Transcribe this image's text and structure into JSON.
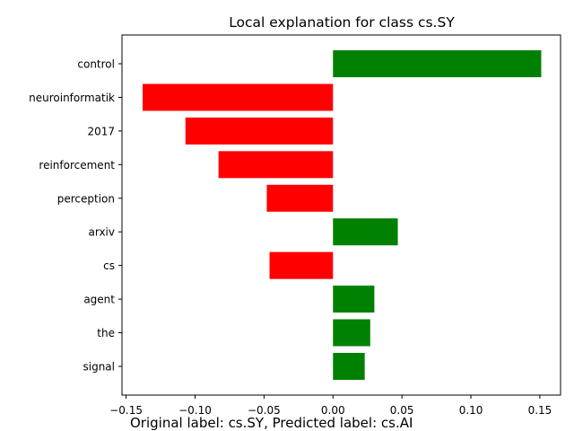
{
  "chart_data": {
    "type": "bar",
    "orientation": "horizontal",
    "title": "Local explanation for class cs.SY",
    "caption": "Original label: cs.SY, Predicted label: cs.AI",
    "categories": [
      "control",
      "neuroinformatik",
      "2017",
      "reinforcement",
      "perception",
      "arxiv",
      "cs",
      "agent",
      "the",
      "signal"
    ],
    "values": [
      0.151,
      -0.138,
      -0.107,
      -0.083,
      -0.048,
      0.047,
      -0.046,
      0.03,
      0.027,
      0.023
    ],
    "xlim": [
      -0.153,
      0.165
    ],
    "xticks": [
      -0.15,
      -0.1,
      -0.05,
      0.0,
      0.05,
      0.1,
      0.15
    ],
    "xtick_labels": [
      "−0.15",
      "−0.10",
      "−0.05",
      "0.00",
      "0.05",
      "0.10",
      "0.15"
    ],
    "colors": {
      "positive": "#008000",
      "negative": "#ff0000"
    },
    "grid": false,
    "legend": "none"
  }
}
